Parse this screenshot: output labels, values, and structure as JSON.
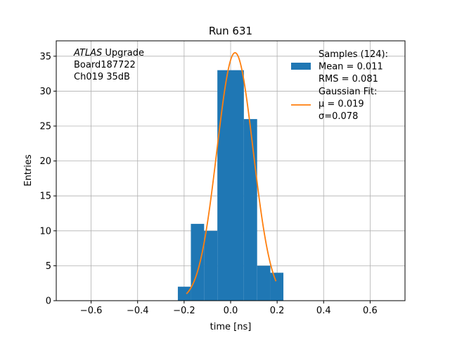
{
  "chart_data": {
    "type": "bar",
    "title": "Run 631",
    "xlabel": "time [ns]",
    "ylabel": "Entries",
    "xlim": [
      -0.75,
      0.75
    ],
    "ylim": [
      0,
      37.2
    ],
    "xticks": [
      -0.6,
      -0.4,
      -0.2,
      0.0,
      0.2,
      0.4,
      0.6
    ],
    "xtick_labels": [
      "−0.6",
      "−0.4",
      "−0.2",
      "0.0",
      "0.2",
      "0.4",
      "0.6"
    ],
    "yticks": [
      0,
      5,
      10,
      15,
      20,
      25,
      30,
      35
    ],
    "ytick_labels": [
      "0",
      "5",
      "10",
      "15",
      "20",
      "25",
      "30",
      "35"
    ],
    "grid": true,
    "legend_position": "top-right",
    "bin_edges": [
      -0.227,
      -0.171,
      -0.114,
      -0.057,
      0.0,
      0.057,
      0.114,
      0.171,
      0.227
    ],
    "counts": [
      2,
      11,
      10,
      33,
      33,
      26,
      5,
      4
    ],
    "fit": {
      "mu": 0.019,
      "sigma": 0.078,
      "amplitude": 35.5,
      "x_min": -0.19,
      "x_max": 0.195
    },
    "hist_color": "#1f77b4",
    "fit_color": "#ff7f0e",
    "annotation": [
      {
        "italic": "ATLAS",
        "text": " Upgrade"
      },
      {
        "italic": "",
        "text": " Board187722"
      },
      {
        "italic": "",
        "text": " Ch019 35dB"
      }
    ],
    "legend": [
      {
        "kind": "bar",
        "lines": [
          "Samples (124):",
          " Mean = 0.011",
          " RMS = 0.081"
        ]
      },
      {
        "kind": "line",
        "lines": [
          "Gaussian Fit:",
          " μ = 0.019",
          " σ=0.078"
        ]
      }
    ]
  }
}
